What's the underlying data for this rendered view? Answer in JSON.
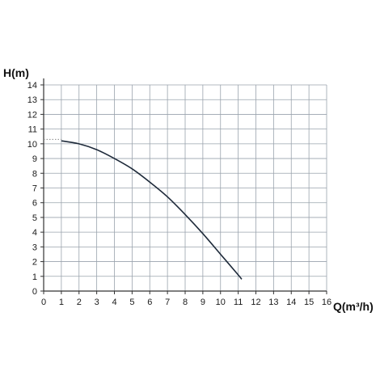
{
  "chart_data": {
    "type": "line",
    "title": "",
    "xlabel": "Q(m³/h)",
    "ylabel": "H(m)",
    "xlim": [
      0,
      16
    ],
    "ylim": [
      0,
      14
    ],
    "x_ticks": [
      "0",
      "1",
      "2",
      "3",
      "4",
      "5",
      "6",
      "7",
      "8",
      "9",
      "10",
      "11",
      "12",
      "13",
      "14",
      "15",
      "16"
    ],
    "y_ticks": [
      "0",
      "1",
      "2",
      "3",
      "4",
      "5",
      "6",
      "7",
      "8",
      "9",
      "10",
      "11",
      "12",
      "13",
      "14"
    ],
    "grid": true,
    "series": [
      {
        "x": [
          1,
          2,
          3,
          4,
          5,
          6,
          7,
          8,
          9,
          10,
          11,
          11.2
        ],
        "y": [
          10.2,
          10.0,
          9.6,
          9.0,
          8.3,
          7.4,
          6.4,
          5.2,
          3.9,
          2.5,
          1.1,
          0.8
        ]
      }
    ],
    "shutoff_reference": {
      "x": [
        0,
        1
      ],
      "y": [
        10.3,
        10.3
      ],
      "style": "dotted"
    },
    "colors": {
      "curve": "#1e2a3a",
      "grid": "#9aa3ad",
      "axis": "#333333",
      "reference": "#888888"
    }
  }
}
